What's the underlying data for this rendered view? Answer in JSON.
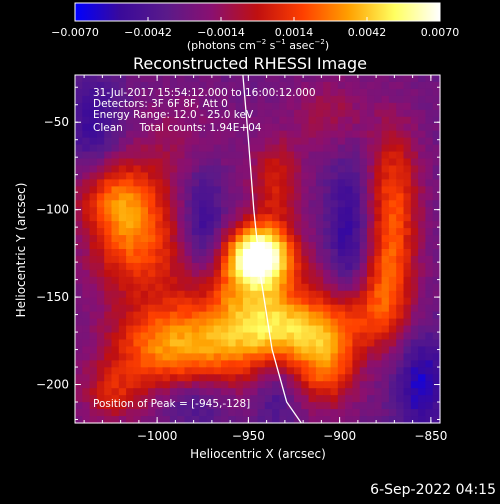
{
  "chart_data": {
    "type": "heatmap",
    "title": "Reconstructed RHESSI Image",
    "xlabel": "Heliocentric X (arcsec)",
    "ylabel": "Heliocentric Y (arcsec)",
    "xlim": [
      -1045,
      -845
    ],
    "ylim": [
      -222,
      -23
    ],
    "x_ticks": [
      {
        "value": -1000,
        "label": "−1000"
      },
      {
        "value": -950,
        "label": "−950"
      },
      {
        "value": -900,
        "label": "−900"
      },
      {
        "value": -850,
        "label": "−850"
      }
    ],
    "y_ticks": [
      {
        "value": -50,
        "label": "−50"
      },
      {
        "value": -100,
        "label": "−100"
      },
      {
        "value": -150,
        "label": "−150"
      },
      {
        "value": -200,
        "label": "−200"
      }
    ],
    "colorbar": {
      "range": [
        -0.007,
        0.007
      ],
      "ticks": [
        {
          "value": -0.007,
          "label": "−0.0070"
        },
        {
          "value": -0.0042,
          "label": "−0.0042"
        },
        {
          "value": -0.0014,
          "label": "−0.0014"
        },
        {
          "value": 0.0014,
          "label": "0.0014"
        },
        {
          "value": 0.0042,
          "label": "0.0042"
        },
        {
          "value": 0.007,
          "label": "0.0070"
        }
      ],
      "unit_main": "(photons cm",
      "unit_exp1": "−2",
      "unit_mid": " s",
      "unit_exp2": "−1",
      "unit_mid2": " asec",
      "unit_exp3": "−2",
      "unit_end": ")",
      "colors": [
        "#0000ff",
        "#3a0a9a",
        "#5a1a8a",
        "#8a1070",
        "#c01010",
        "#ff4000",
        "#ffa000",
        "#ffff60",
        "#ffffff"
      ]
    },
    "annotations": [
      "31-Jul-2017 15:54:12.000 to 16:00:12.000",
      "Detectors: 3F 6F 8F, Att 0",
      "Energy Range: 12.0 - 25.0 keV",
      "Clean     Total counts: 1.94E+04"
    ],
    "peak_label": "Position of Peak = [-945,-128]",
    "peak": {
      "x": -945,
      "y": -128
    },
    "limb": [
      {
        "x": -953,
        "y": -23
      },
      {
        "x": -950,
        "y": -60
      },
      {
        "x": -947,
        "y": -100
      },
      {
        "x": -943,
        "y": -140
      },
      {
        "x": -937,
        "y": -180
      },
      {
        "x": -929,
        "y": -210
      },
      {
        "x": -921,
        "y": -222
      }
    ],
    "sources": [
      {
        "x": -944,
        "y": -126,
        "amp": 1.0,
        "sx": 12,
        "sy": 12
      },
      {
        "x": -950,
        "y": -150,
        "amp": 0.5,
        "sx": 25,
        "sy": 20
      },
      {
        "x": -1012,
        "y": -118,
        "amp": 0.5,
        "sx": 18,
        "sy": 22
      },
      {
        "x": -1022,
        "y": -92,
        "amp": 0.4,
        "sx": 15,
        "sy": 15
      },
      {
        "x": -962,
        "y": -180,
        "amp": 0.42,
        "sx": 30,
        "sy": 16
      },
      {
        "x": -1000,
        "y": -178,
        "amp": 0.4,
        "sx": 20,
        "sy": 18
      },
      {
        "x": -907,
        "y": -190,
        "amp": 0.48,
        "sx": 12,
        "sy": 16
      },
      {
        "x": -925,
        "y": -168,
        "amp": 0.38,
        "sx": 20,
        "sy": 12
      },
      {
        "x": -870,
        "y": -90,
        "amp": 0.42,
        "sx": 10,
        "sy": 28
      },
      {
        "x": -873,
        "y": -140,
        "amp": 0.4,
        "sx": 10,
        "sy": 25
      },
      {
        "x": -890,
        "y": -160,
        "amp": 0.3,
        "sx": 15,
        "sy": 15
      },
      {
        "x": -935,
        "y": -85,
        "amp": 0.35,
        "sx": 10,
        "sy": 18
      },
      {
        "x": -1025,
        "y": -205,
        "amp": 0.3,
        "sx": 12,
        "sy": 12
      },
      {
        "x": -990,
        "y": -60,
        "amp": 0.15,
        "sx": 20,
        "sy": 20
      },
      {
        "x": -905,
        "y": -45,
        "amp": 0.2,
        "sx": 15,
        "sy": 15
      }
    ],
    "negative_sources": [
      {
        "x": -975,
        "y": -110,
        "amp": 0.3,
        "sx": 8,
        "sy": 25
      },
      {
        "x": -1035,
        "y": -50,
        "amp": 0.25,
        "sx": 12,
        "sy": 20
      },
      {
        "x": -895,
        "y": -115,
        "amp": 0.3,
        "sx": 8,
        "sy": 30
      },
      {
        "x": -855,
        "y": -200,
        "amp": 0.35,
        "sx": 10,
        "sy": 20
      },
      {
        "x": -935,
        "y": -205,
        "amp": 0.2,
        "sx": 8,
        "sy": 15
      },
      {
        "x": -980,
        "y": -210,
        "amp": 0.2,
        "sx": 12,
        "sy": 10
      }
    ]
  },
  "footer": {
    "date": "6-Sep-2022 04:15"
  }
}
